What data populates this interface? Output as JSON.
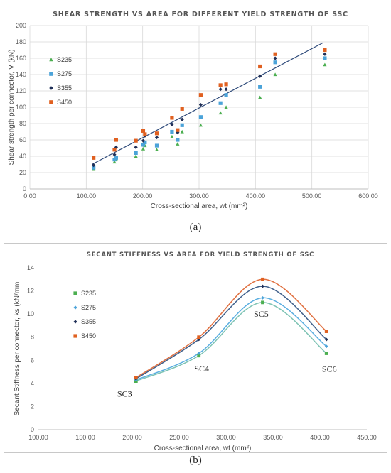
{
  "captions": {
    "a": "(a)",
    "b": "(b)"
  },
  "colors": {
    "S235": "#4caf50",
    "S275": "#4ba3d9",
    "S355": "#1f2f57",
    "S450": "#e06020",
    "fit": "#2e4a7a",
    "curve235": "#7ec3b4",
    "curve275": "#5aaee0",
    "curve355": "#3f5f8a",
    "curve450": "#e07040"
  },
  "chart_data": [
    {
      "type": "scatter",
      "title": "SHEAR STRENGTH VS AREA FOR DIFFERENT YIELD STRENGTH OF SSC",
      "xlabel": "Cross-sectional area, wt (mm²)",
      "ylabel": "Shear strength per connector, V (kN)",
      "xlim": [
        0,
        600
      ],
      "ylim": [
        0,
        200
      ],
      "xticks": [
        "0.00",
        "100.00",
        "200.00",
        "300.00",
        "400.00",
        "500.00",
        "600.00"
      ],
      "yticks": [
        "0",
        "20",
        "40",
        "60",
        "80",
        "100",
        "120",
        "140",
        "160",
        "180",
        "200"
      ],
      "grid": true,
      "legend": "left",
      "trendline": {
        "x": [
          110,
          520
        ],
        "y": [
          30,
          179
        ]
      },
      "series": [
        {
          "name": "S235",
          "marker": "triangle",
          "x": [
            113,
            150,
            153,
            188,
            201,
            204,
            225,
            252,
            262,
            270,
            303,
            338,
            348,
            408,
            435,
            523
          ],
          "y": [
            24,
            33,
            36,
            40,
            49,
            53,
            48,
            64,
            55,
            70,
            78,
            93,
            100,
            112,
            140,
            152
          ]
        },
        {
          "name": "S275",
          "marker": "square",
          "x": [
            113,
            150,
            153,
            188,
            201,
            204,
            225,
            252,
            262,
            270,
            303,
            338,
            348,
            408,
            435,
            523
          ],
          "y": [
            26,
            36,
            38,
            44,
            54,
            57,
            53,
            70,
            60,
            78,
            88,
            105,
            115,
            125,
            155,
            160
          ]
        },
        {
          "name": "S355",
          "marker": "diamond",
          "x": [
            113,
            150,
            153,
            188,
            201,
            204,
            225,
            252,
            262,
            270,
            303,
            338,
            348,
            408,
            435,
            523
          ],
          "y": [
            29,
            42,
            51,
            51,
            59,
            65,
            63,
            79,
            69,
            85,
            103,
            122,
            122,
            138,
            160,
            165
          ]
        },
        {
          "name": "S450",
          "marker": "square",
          "x": [
            113,
            150,
            153,
            188,
            201,
            204,
            225,
            252,
            262,
            270,
            303,
            338,
            348,
            408,
            435,
            523
          ],
          "y": [
            38,
            48,
            60,
            59,
            71,
            67,
            68,
            87,
            72,
            98,
            115,
            127,
            128,
            150,
            165,
            170
          ]
        }
      ]
    },
    {
      "type": "line",
      "title": "SECANT STIFFNESS VS AREA FOR YIELD STRENGTH OF SSC",
      "xlabel": "Cross-sectional area, wt (mm²)",
      "ylabel": "Secant Stiffness per connector, ks (kN/mm",
      "xlim": [
        100,
        450
      ],
      "ylim": [
        0,
        14
      ],
      "xticks": [
        "100.00",
        "150.00",
        "200.00",
        "250.00",
        "300.00",
        "350.00",
        "400.00",
        "450.00"
      ],
      "yticks": [
        "0",
        "2",
        "4",
        "6",
        "8",
        "10",
        "12",
        "14"
      ],
      "grid": false,
      "legend": "left",
      "x": [
        204,
        271,
        339,
        407
      ],
      "annotations": [
        "SC3",
        "SC4",
        "SC5",
        "SC6"
      ],
      "series": [
        {
          "name": "S235",
          "marker": "square",
          "values": [
            4.2,
            6.4,
            11.0,
            6.6
          ]
        },
        {
          "name": "S275",
          "marker": "diamond",
          "values": [
            4.3,
            6.6,
            11.4,
            7.2
          ]
        },
        {
          "name": "S355",
          "marker": "diamond",
          "values": [
            4.4,
            7.8,
            12.4,
            7.8
          ]
        },
        {
          "name": "S450",
          "marker": "square",
          "values": [
            4.5,
            8.0,
            13.0,
            8.5
          ]
        }
      ]
    }
  ]
}
